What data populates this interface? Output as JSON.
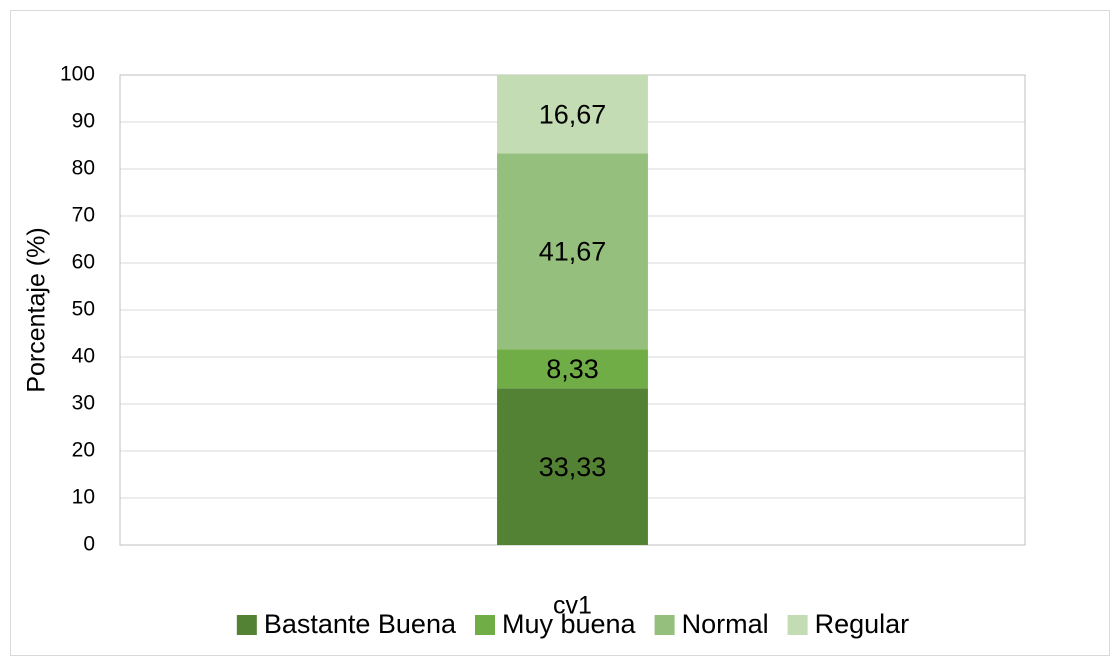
{
  "chart_data": {
    "type": "stacked-bar",
    "ylabel": "Porcentaje (%)",
    "categories": [
      "cv1"
    ],
    "series": [
      {
        "name": "Bastante Buena",
        "color": "#548235",
        "values": [
          33.33
        ],
        "value_labels": [
          "33,33"
        ]
      },
      {
        "name": "Muy buena",
        "color": "#70ad47",
        "values": [
          8.33
        ],
        "value_labels": [
          "8,33"
        ]
      },
      {
        "name": "Normal",
        "color": "#95bf7d",
        "values": [
          41.67
        ],
        "value_labels": [
          "41,67"
        ]
      },
      {
        "name": "Regular",
        "color": "#c3dcb3",
        "values": [
          16.67
        ],
        "value_labels": [
          "16,67"
        ]
      }
    ],
    "ylim": [
      0,
      100
    ],
    "yticks": [
      0,
      10,
      20,
      30,
      40,
      50,
      60,
      70,
      80,
      90,
      100
    ],
    "grid": true,
    "legend": "bottom"
  }
}
